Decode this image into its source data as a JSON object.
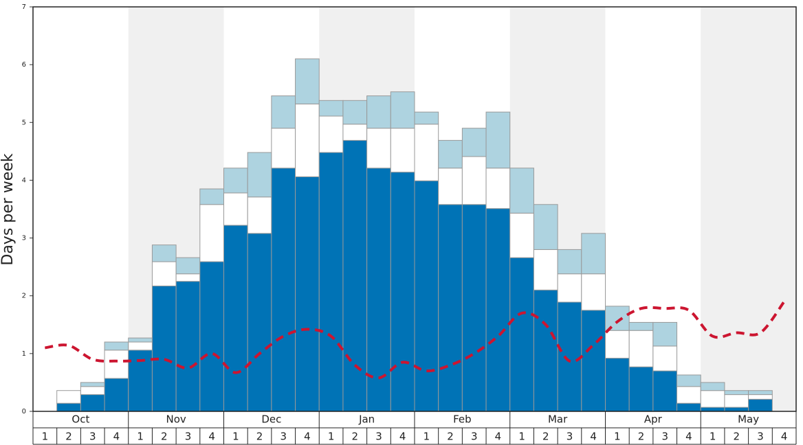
{
  "chart_data": {
    "type": "stacked-bar",
    "ylabel": "Days per week",
    "ylim": [
      0,
      7
    ],
    "yticks": [
      0,
      1,
      2,
      3,
      4,
      5,
      6,
      7
    ],
    "months": [
      "Oct",
      "Nov",
      "Dec",
      "Jan",
      "Feb",
      "Mar",
      "Apr",
      "May"
    ],
    "categories": [
      "1",
      "2",
      "3",
      "4",
      "1",
      "2",
      "3",
      "4",
      "1",
      "2",
      "3",
      "4",
      "1",
      "2",
      "3",
      "4",
      "1",
      "2",
      "3",
      "4",
      "1",
      "2",
      "3",
      "4",
      "1",
      "2",
      "3",
      "4",
      "1",
      "2",
      "3",
      "4"
    ],
    "series": [
      {
        "color": "#0073b6",
        "values": [
          0,
          0.14,
          0.29,
          0.57,
          1.06,
          2.17,
          2.25,
          2.59,
          3.22,
          3.08,
          4.21,
          4.06,
          4.48,
          4.69,
          4.21,
          4.14,
          3.99,
          3.58,
          3.58,
          3.51,
          2.66,
          2.1,
          1.89,
          1.75,
          0.92,
          0.77,
          0.7,
          0.14,
          0.07,
          0.07,
          0.21,
          0
        ]
      },
      {
        "color": "#ffffff",
        "values": [
          0,
          0.22,
          0.14,
          0.49,
          0.14,
          0.42,
          0.13,
          0.99,
          0.56,
          0.63,
          0.69,
          1.26,
          0.63,
          0.28,
          0.69,
          0.76,
          0.98,
          0.63,
          0.83,
          0.7,
          0.77,
          0.7,
          0.49,
          0.63,
          0.48,
          0.63,
          0.43,
          0.29,
          0.29,
          0.22,
          0.08,
          0
        ]
      },
      {
        "color": "#aed3e0",
        "values": [
          0,
          0,
          0.07,
          0.14,
          0.07,
          0.29,
          0.28,
          0.27,
          0.43,
          0.77,
          0.56,
          0.78,
          0.27,
          0.41,
          0.56,
          0.63,
          0.21,
          0.48,
          0.49,
          0.97,
          0.78,
          0.78,
          0.42,
          0.7,
          0.42,
          0.14,
          0.41,
          0.2,
          0.14,
          0.07,
          0.07,
          0
        ]
      },
      {
        "type": "line",
        "color": "#cc1530",
        "values": [
          1.1,
          1.14,
          0.9,
          0.87,
          0.88,
          0.9,
          0.75,
          1.0,
          0.67,
          1.0,
          1.3,
          1.42,
          1.3,
          0.8,
          0.58,
          0.85,
          0.7,
          0.8,
          1.0,
          1.3,
          1.7,
          1.5,
          0.87,
          1.15,
          1.55,
          1.78,
          1.78,
          1.75,
          1.3,
          1.36,
          1.36,
          1.9
        ]
      }
    ]
  }
}
